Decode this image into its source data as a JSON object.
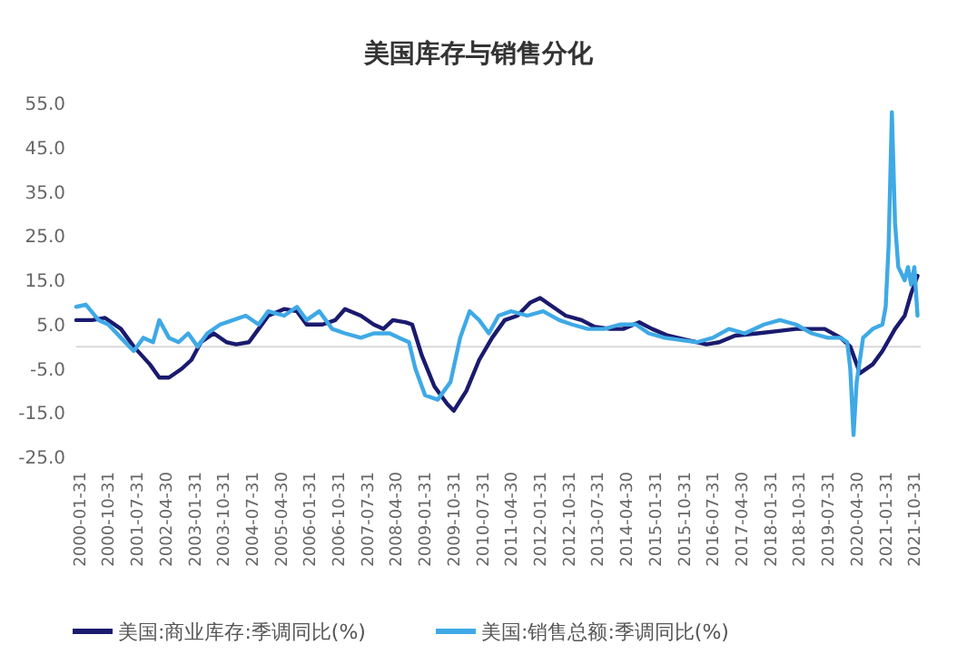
{
  "chart_data": {
    "type": "line",
    "title": "美国库存与销售分化",
    "legend": "bottom",
    "grid": false,
    "xlim": [
      "2000-01",
      "2021-12-31"
    ],
    "xticks": [
      "2000-01-31",
      "2000-10-31",
      "2001-07-31",
      "2002-04-30",
      "2003-01-31",
      "2003-10-31",
      "2004-07-31",
      "2005-04-30",
      "2006-01-31",
      "2006-10-31",
      "2007-07-31",
      "2008-04-30",
      "2009-01-31",
      "2009-10-31",
      "2010-07-31",
      "2011-04-30",
      "2012-01-31",
      "2012-10-31",
      "2013-07-31",
      "2014-04-30",
      "2015-01-31",
      "2015-10-31",
      "2016-07-31",
      "2017-04-30",
      "2018-01-31",
      "2018-10-31",
      "2019-07-31",
      "2020-04-30",
      "2021-01-31",
      "2021-10-31"
    ],
    "ylim": [
      -25,
      55
    ],
    "yticks": [
      {
        "value": 55,
        "label": "55.0"
      },
      {
        "value": 45,
        "label": "45.0"
      },
      {
        "value": 35,
        "label": "35.0"
      },
      {
        "value": 25,
        "label": "25.0"
      },
      {
        "value": 15,
        "label": "15.0"
      },
      {
        "value": 5,
        "label": "5.0"
      },
      {
        "value": -5,
        "label": "-5.0"
      },
      {
        "value": -15,
        "label": "-15.0"
      },
      {
        "value": -25,
        "label": "-25.0"
      }
    ],
    "series": [
      {
        "name": "美国:商业库存:季调同比(%)",
        "color": "#1a1a6e",
        "x": [
          "2000-01",
          "2000-06",
          "2000-10",
          "2001-03",
          "2001-07",
          "2001-12",
          "2002-03",
          "2002-06",
          "2002-10",
          "2003-01",
          "2003-04",
          "2003-08",
          "2003-12",
          "2004-03",
          "2004-07",
          "2004-10",
          "2005-01",
          "2005-06",
          "2005-10",
          "2006-01",
          "2006-06",
          "2006-10",
          "2007-01",
          "2007-06",
          "2007-10",
          "2008-01",
          "2008-04",
          "2008-08",
          "2008-10",
          "2009-01",
          "2009-05",
          "2009-09",
          "2009-11",
          "2010-03",
          "2010-07",
          "2010-11",
          "2011-03",
          "2011-07",
          "2011-11",
          "2012-02",
          "2012-06",
          "2012-10",
          "2013-03",
          "2013-07",
          "2013-12",
          "2014-04",
          "2014-09",
          "2015-01",
          "2015-06",
          "2015-12",
          "2016-06",
          "2016-10",
          "2017-03",
          "2017-10",
          "2018-04",
          "2018-10",
          "2019-03",
          "2019-07",
          "2019-12",
          "2020-03",
          "2020-06",
          "2020-10",
          "2021-01",
          "2021-05",
          "2021-08",
          "2021-10",
          "2021-12"
        ],
        "values": [
          6,
          6,
          6.5,
          4,
          0,
          -4,
          -7,
          -7,
          -5,
          -3,
          1,
          3,
          1,
          0.5,
          1,
          4,
          7,
          8.5,
          8,
          5,
          5,
          6,
          8.5,
          7,
          5,
          4,
          6,
          5.5,
          5,
          -2,
          -9,
          -13,
          -14.5,
          -10,
          -3,
          2,
          6,
          7,
          10,
          11,
          9,
          7,
          6,
          4.5,
          4,
          4,
          5.5,
          4,
          2.5,
          1.5,
          0.5,
          1,
          2.5,
          3,
          3.5,
          4,
          4,
          4,
          2,
          0,
          -6,
          -4,
          -1,
          4,
          7,
          12,
          16
        ]
      },
      {
        "name": "美国:销售总额:季调同比(%)",
        "color": "#3fa9e6",
        "x": [
          "2000-01",
          "2000-04",
          "2000-08",
          "2000-11",
          "2001-03",
          "2001-07",
          "2001-10",
          "2002-01",
          "2002-03",
          "2002-06",
          "2002-09",
          "2002-12",
          "2003-03",
          "2003-06",
          "2003-10",
          "2004-02",
          "2004-06",
          "2004-10",
          "2005-01",
          "2005-06",
          "2005-10",
          "2006-01",
          "2006-05",
          "2006-09",
          "2007-01",
          "2007-06",
          "2007-10",
          "2008-03",
          "2008-06",
          "2008-09",
          "2008-11",
          "2009-02",
          "2009-06",
          "2009-10",
          "2010-01",
          "2010-04",
          "2010-07",
          "2010-10",
          "2011-01",
          "2011-05",
          "2011-10",
          "2012-03",
          "2012-08",
          "2012-12",
          "2013-05",
          "2013-10",
          "2014-03",
          "2014-08",
          "2014-12",
          "2015-05",
          "2015-10",
          "2016-03",
          "2016-08",
          "2017-01",
          "2017-06",
          "2017-12",
          "2018-05",
          "2018-10",
          "2019-03",
          "2019-08",
          "2019-12",
          "2020-02",
          "2020-03",
          "2020-04",
          "2020-05",
          "2020-07",
          "2020-10",
          "2021-01",
          "2021-02",
          "2021-03",
          "2021-04",
          "2021-05",
          "2021-06",
          "2021-08",
          "2021-09",
          "2021-10",
          "2021-11",
          "2021-12"
        ],
        "values": [
          9,
          9.5,
          6,
          5,
          2,
          -1,
          2,
          1,
          6,
          2,
          1,
          3,
          0,
          3,
          5,
          6,
          7,
          5,
          8,
          7,
          9,
          6,
          8,
          4,
          3,
          2,
          3,
          3,
          2,
          1,
          -5,
          -11,
          -12,
          -8,
          2,
          8,
          6,
          3,
          7,
          8,
          7,
          8,
          6,
          5,
          4,
          4,
          5,
          5,
          3,
          2,
          1.5,
          1,
          2,
          4,
          3,
          5,
          6,
          5,
          3,
          2,
          2,
          1,
          -5,
          -20,
          -8,
          2,
          4,
          5,
          9,
          23,
          53,
          28,
          18,
          15,
          18,
          14,
          18,
          7
        ]
      }
    ]
  }
}
